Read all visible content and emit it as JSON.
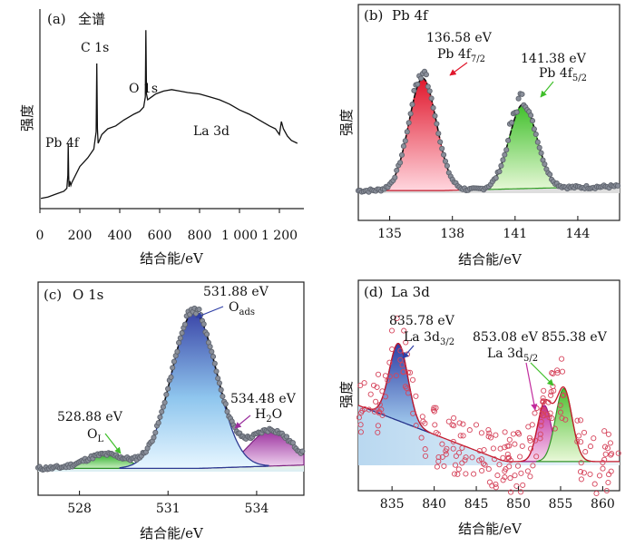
{
  "chart_data": [
    {
      "panel_label": "(a)",
      "title": "全谱",
      "type": "line",
      "xlabel": "结合能/eV",
      "ylabel": "强度",
      "xlim": [
        0,
        1300
      ],
      "xticks": [
        0,
        200,
        400,
        600,
        800,
        1000,
        1200
      ],
      "xtick_labels": [
        "0",
        "200",
        "400",
        "600",
        "800",
        "1 000",
        "1 200"
      ],
      "series": [
        {
          "x": [
            5,
            40,
            80,
            120,
            135,
            140,
            142,
            144,
            146,
            150,
            155,
            160,
            200,
            240,
            270,
            282,
            285,
            288,
            292,
            310,
            340,
            380,
            420,
            470,
            500,
            520,
            528,
            531,
            534,
            540,
            560,
            580,
            620,
            660,
            700,
            740,
            800,
            850,
            900,
            950,
            1000,
            1050,
            1100,
            1150,
            1180,
            1200,
            1210,
            1220,
            1240,
            1260,
            1290
          ],
          "y": [
            2,
            3,
            5,
            7,
            9,
            18,
            40,
            18,
            10,
            14,
            11,
            13,
            24,
            30,
            36,
            48,
            95,
            50,
            40,
            46,
            50,
            52,
            56,
            60,
            62,
            65,
            72,
            118,
            74,
            70,
            72,
            74,
            76,
            77,
            76,
            75,
            74,
            72,
            70,
            67,
            63,
            60,
            56,
            52,
            50,
            46,
            55,
            50,
            45,
            42,
            40
          ]
        }
      ],
      "annotations": [
        {
          "text": "Pb 4f",
          "x": 140
        },
        {
          "text": "C 1s",
          "x": 285
        },
        {
          "text": "O 1s",
          "x": 531
        },
        {
          "text": "La 3d",
          "x": 835
        }
      ]
    },
    {
      "panel_label": "(b)",
      "title": "Pb 4f",
      "type": "area",
      "xlabel": "结合能/eV",
      "ylabel": "强度",
      "xlim": [
        133.5,
        146
      ],
      "xticks": [
        135,
        138,
        141,
        144
      ],
      "series": [
        {
          "name": "Pb 4f7/2",
          "center": 136.58,
          "height": 100,
          "fwhm": 1.55,
          "color": "#e0162b"
        },
        {
          "name": "Pb 4f5/2",
          "center": 141.38,
          "height": 75,
          "fwhm": 1.55,
          "color": "#3fbf2a"
        }
      ],
      "annotations": [
        {
          "text": "136.58 eV",
          "sub_base": "Pb 4f",
          "sub": "7/2"
        },
        {
          "text": "141.38 eV",
          "sub_base": "Pb 4f",
          "sub": "5/2"
        }
      ]
    },
    {
      "panel_label": "(c)",
      "title": "O 1s",
      "type": "area",
      "xlabel": "结合能/eV",
      "ylabel": "",
      "xlim": [
        526.6,
        535.6
      ],
      "xticks": [
        528,
        531,
        534
      ],
      "series": [
        {
          "name": "O L",
          "center": 528.88,
          "height": 9,
          "fwhm": 1.6,
          "color": "#2fae2a"
        },
        {
          "name": "O ads",
          "center": 531.88,
          "height": 100,
          "fwhm": 1.8,
          "color": "#3b46a8"
        },
        {
          "name": "H2O",
          "center": 534.48,
          "height": 23,
          "fwhm": 1.7,
          "color": "#9b2f9e"
        }
      ],
      "annotations": [
        {
          "text": "528.88 eV",
          "sub_base": "O",
          "sub": "L"
        },
        {
          "text": "531.88 eV",
          "sub_base": "O",
          "sub": "ads"
        },
        {
          "text": "534.48 eV",
          "sub_base": "H",
          "sub": "2",
          "sub_tail": "O"
        }
      ]
    },
    {
      "panel_label": "(d)",
      "title": "La 3d",
      "type": "area",
      "xlabel": "结合能/eV",
      "ylabel": "强度",
      "xlim": [
        831,
        862
      ],
      "xticks": [
        835,
        840,
        845,
        850,
        855,
        860
      ],
      "series": [
        {
          "name": "La 3d3/2 (835.78)",
          "center": 835.78,
          "height": 55,
          "fwhm": 2.6,
          "color": "#3b46a8"
        },
        {
          "name": "La 3d5/2 (853.08)",
          "center": 853.08,
          "height": 40,
          "fwhm": 2.0,
          "color": "#c22c9e"
        },
        {
          "name": "La 3d5/2 (855.38)",
          "center": 855.38,
          "height": 52,
          "fwhm": 2.3,
          "color": "#4cbf2f"
        }
      ],
      "annotations": [
        {
          "text": "835.78 eV",
          "sub_base": "La 3d",
          "sub": "3/2"
        },
        {
          "text": "853.08 eV"
        },
        {
          "text": "855.38 eV",
          "sub_base": "La 3d",
          "sub": "5/2"
        }
      ]
    }
  ]
}
